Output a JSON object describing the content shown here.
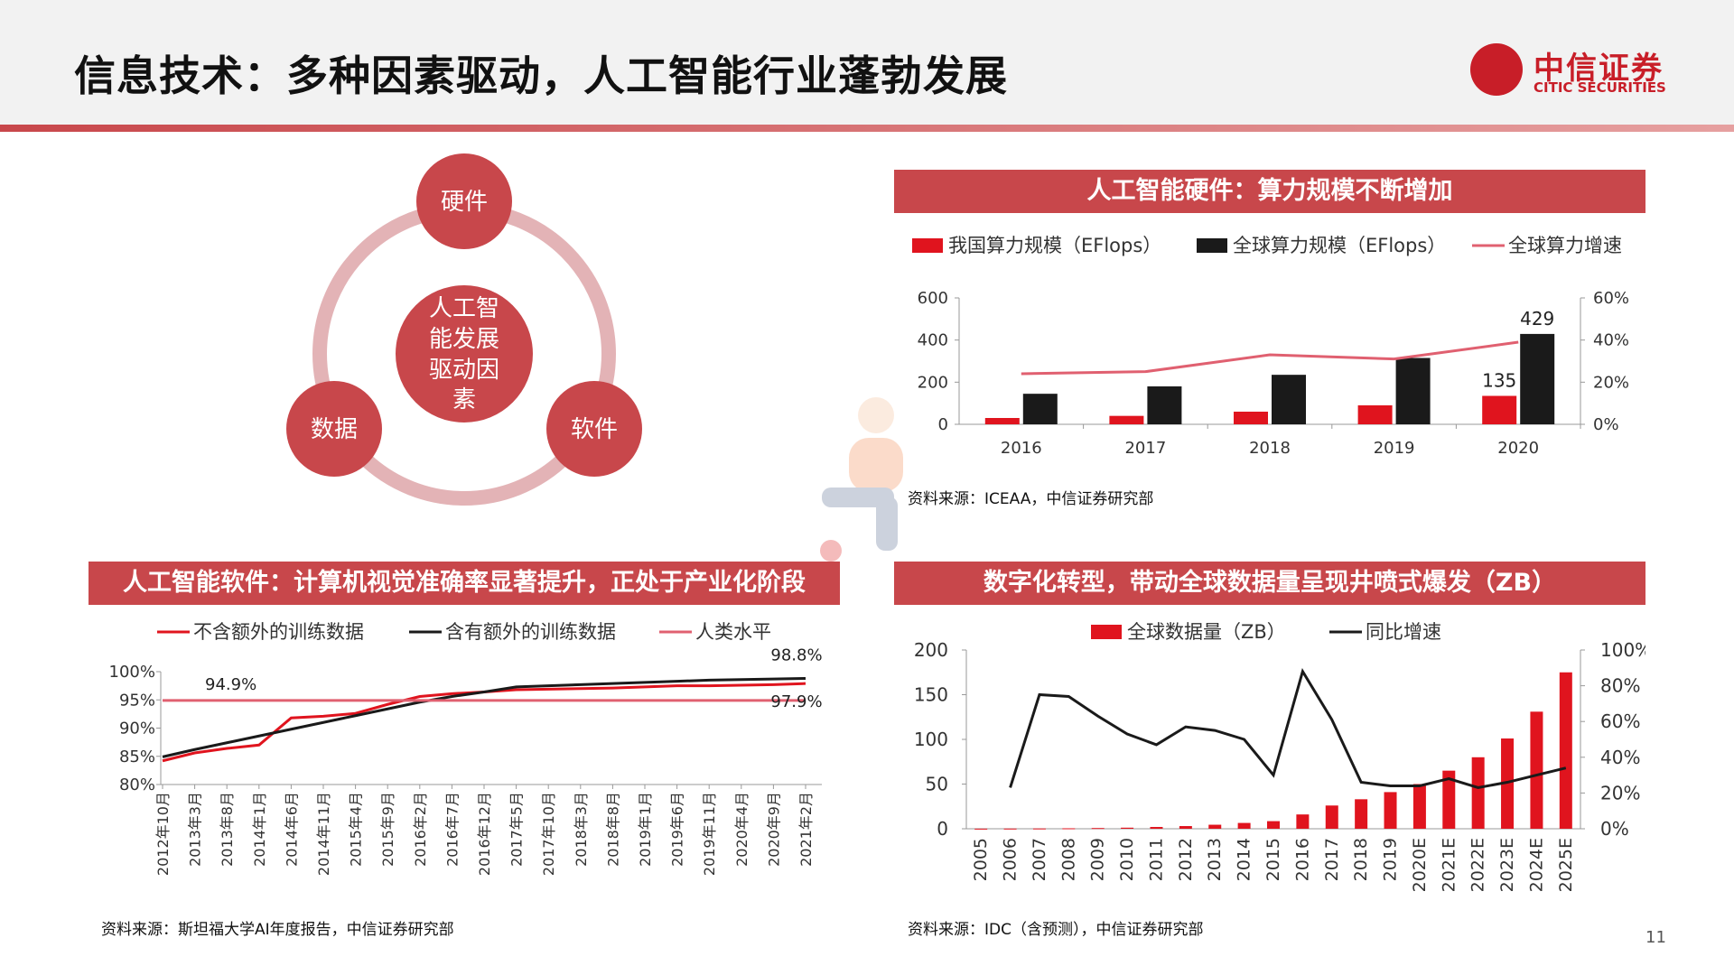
{
  "header": {
    "title": "信息技术：多种因素驱动，人工智能行业蓬勃发展"
  },
  "logo": {
    "cn": "中信证券",
    "en": "CITIC SECURITIES"
  },
  "diagram": {
    "center": [
      "人工智",
      "能发展",
      "驱动因",
      "素"
    ],
    "nodes": {
      "top": "硬件",
      "left": "数据",
      "right": "软件"
    }
  },
  "sections": {
    "hardware_title": "人工智能硬件：算力规模不断增加",
    "software_title": "人工智能软件：计算机视觉准确率显著提升，正处于产业化阶段",
    "data_title": "数字化转型，带动全球数据量呈现井喷式爆发（ZB）"
  },
  "sources": {
    "hardware": "资料来源：ICEAA，中信证券研究部",
    "software": "资料来源：斯坦福大学AI年度报告，中信证券研究部",
    "data": "资料来源：IDC（含预测），中信证券研究部"
  },
  "page_number": "11",
  "colors": {
    "red": "#e0141e",
    "black": "#1a1a1a",
    "pink": "#e06070",
    "bar": "#c8474b"
  },
  "chart_data": [
    {
      "id": "hardware",
      "type": "bar",
      "categories": [
        "2016",
        "2017",
        "2018",
        "2019",
        "2020"
      ],
      "series": [
        {
          "name": "我国算力规模（EFlops）",
          "kind": "bar",
          "color": "#e0141e",
          "values": [
            30,
            40,
            60,
            90,
            135
          ]
        },
        {
          "name": "全球算力规模（EFlops）",
          "kind": "bar",
          "color": "#1a1a1a",
          "values": [
            145,
            180,
            235,
            315,
            429
          ]
        },
        {
          "name": "全球算力增速",
          "kind": "line",
          "axis": "right",
          "color": "#e06070",
          "values": [
            24,
            25,
            33,
            31,
            39
          ]
        }
      ],
      "data_labels": [
        {
          "series": 0,
          "index": 4,
          "text": "135"
        },
        {
          "series": 1,
          "index": 4,
          "text": "429"
        }
      ],
      "ylim": [
        0,
        600
      ],
      "yticks": [
        "0",
        "200",
        "400",
        "600"
      ],
      "y2lim": [
        0,
        60
      ],
      "y2ticks": [
        "0%",
        "20%",
        "40%",
        "60%"
      ]
    },
    {
      "id": "software",
      "type": "line",
      "categories": [
        "2012年10月",
        "2013年3月",
        "2013年8月",
        "2014年1月",
        "2014年6月",
        "2014年11月",
        "2015年4月",
        "2015年9月",
        "2016年2月",
        "2016年7月",
        "2016年12月",
        "2017年5月",
        "2017年10月",
        "2018年3月",
        "2018年8月",
        "2019年1月",
        "2019年6月",
        "2019年11月",
        "2020年4月",
        "2020年9月",
        "2021年2月"
      ],
      "series": [
        {
          "name": "不含额外的训练数据",
          "color": "#e0141e",
          "values": [
            84.2,
            85.6,
            86.4,
            87.0,
            91.8,
            92.1,
            92.6,
            94.2,
            95.6,
            96.1,
            96.4,
            96.8,
            96.9,
            97.0,
            97.1,
            97.3,
            97.5,
            97.5,
            97.6,
            97.7,
            97.9
          ]
        },
        {
          "name": "含有额外的训练数据",
          "color": "#1a1a1a",
          "values": [
            84.9,
            86.2,
            87.4,
            88.6,
            89.8,
            91.0,
            92.2,
            93.4,
            94.6,
            95.6,
            96.4,
            97.3,
            97.5,
            97.7,
            97.9,
            98.1,
            98.3,
            98.5,
            98.6,
            98.7,
            98.8
          ]
        },
        {
          "name": "人类水平",
          "color": "#e06070",
          "values": [
            94.9,
            94.9,
            94.9,
            94.9,
            94.9,
            94.9,
            94.9,
            94.9,
            94.9,
            94.9,
            94.9,
            94.9,
            94.9,
            94.9,
            94.9,
            94.9,
            94.9,
            94.9,
            94.9,
            94.9,
            94.9
          ]
        }
      ],
      "data_labels": [
        {
          "text": "94.9%",
          "series": 2,
          "index": 1
        },
        {
          "text": "98.8%",
          "series": 1,
          "index": 20
        },
        {
          "text": "97.9%",
          "series": 0,
          "index": 20
        }
      ],
      "ylim": [
        80,
        100
      ],
      "yticks": [
        "80%",
        "85%",
        "90%",
        "95%",
        "100%"
      ]
    },
    {
      "id": "data",
      "type": "bar",
      "categories": [
        "2005",
        "2006",
        "2007",
        "2008",
        "2009",
        "2010",
        "2011",
        "2012",
        "2013",
        "2014",
        "2015",
        "2016",
        "2017",
        "2018",
        "2019",
        "2020E",
        "2021E",
        "2022E",
        "2023E",
        "2024E",
        "2025E"
      ],
      "series": [
        {
          "name": "全球数据量（ZB）",
          "kind": "bar",
          "color": "#e0141e",
          "values": [
            0.1,
            0.2,
            0.3,
            0.5,
            0.8,
            1.2,
            2.0,
            3.0,
            4.5,
            6.5,
            8.5,
            16,
            26,
            33,
            41,
            50,
            65,
            80,
            101,
            131,
            175
          ]
        },
        {
          "name": "同比增速",
          "kind": "line",
          "axis": "right",
          "color": "#1a1a1a",
          "values": [
            null,
            23,
            75,
            74,
            63,
            53,
            47,
            57,
            55,
            50,
            30,
            88,
            61,
            26,
            24,
            24,
            28,
            23,
            26,
            30,
            34
          ]
        }
      ],
      "ylim": [
        0,
        200
      ],
      "yticks": [
        "0",
        "50",
        "100",
        "150",
        "200"
      ],
      "y2lim": [
        0,
        100
      ],
      "y2ticks": [
        "0%",
        "20%",
        "40%",
        "60%",
        "80%",
        "100%"
      ]
    }
  ]
}
